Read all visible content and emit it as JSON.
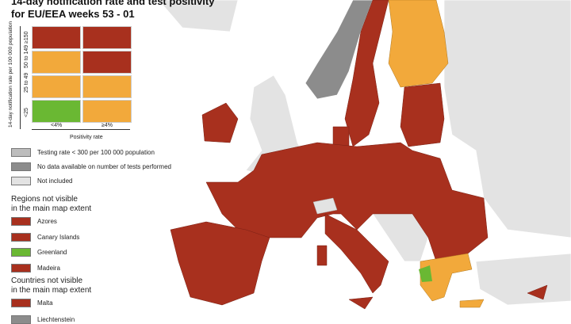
{
  "title_line1": "14-day notification rate and test positivity",
  "title_line2": "for EU/EEA weeks 53 - 01",
  "colors": {
    "red": "#a8301e",
    "orange": "#f2a93b",
    "green": "#6ab833",
    "gray": "#8c8c8c",
    "light_gray": "#bdbdbd",
    "not_included": "#e3e3e3"
  },
  "matrix": {
    "y_axis_label": "14-day notification rate per 100 000 population",
    "x_axis_label": "Positivity rate",
    "rows": [
      "≥150",
      "50 to 149",
      "25 to 49",
      "<25"
    ],
    "cols": [
      "<4%",
      "≥4%"
    ],
    "cells": [
      [
        "red",
        "red"
      ],
      [
        "orange",
        "red"
      ],
      [
        "orange",
        "orange"
      ],
      [
        "green",
        "orange"
      ]
    ]
  },
  "legend": [
    {
      "label": "Testing rate < 300 per 100 000 population",
      "color": "light_gray"
    },
    {
      "label": "No data available on number of tests performed",
      "color": "gray"
    },
    {
      "label": "Not included",
      "color": "not_included"
    }
  ],
  "regions_header_1": "Regions not visible",
  "regions_header_2": "in the main map extent",
  "regions": [
    {
      "label": "Azores",
      "color": "red"
    },
    {
      "label": "Canary Islands",
      "color": "red"
    },
    {
      "label": "Greenland",
      "color": "green"
    },
    {
      "label": "Madeira",
      "color": "red"
    }
  ],
  "countries_header_1": "Countries not visible",
  "countries_header_2": "in the main map extent",
  "countries": [
    {
      "label": "Malta",
      "color": "red"
    },
    {
      "label": "Liechtenstein",
      "color": "gray"
    }
  ]
}
